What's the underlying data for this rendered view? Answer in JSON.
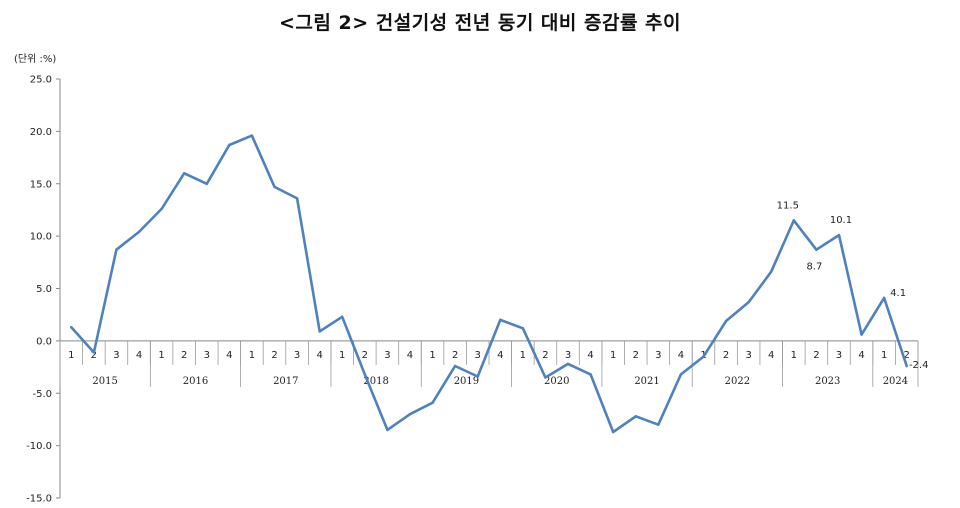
{
  "title": "<그림 2> 건설기성 전년 동기 대비 증감률 추이",
  "unit_label": "(단위 :%)",
  "chart_data": {
    "type": "line",
    "ylim": [
      -15,
      25
    ],
    "yticks": [
      "25.0",
      "20.0",
      "15.0",
      "10.0",
      "5.0",
      "0.0",
      "-5.0",
      "-10.0",
      "-15.0"
    ],
    "ytick_values": [
      25,
      20,
      15,
      10,
      5,
      0,
      -5,
      -10,
      -15
    ],
    "quarters": [
      "1",
      "2",
      "3",
      "4",
      "1",
      "2",
      "3",
      "4",
      "1",
      "2",
      "3",
      "4",
      "1",
      "2",
      "3",
      "4",
      "1",
      "2",
      "3",
      "4",
      "1",
      "2",
      "3",
      "4",
      "1",
      "2",
      "3",
      "4",
      "1",
      "2",
      "3",
      "4",
      "1",
      "2",
      "3",
      "4",
      "1",
      "2"
    ],
    "years": [
      "2015",
      "2016",
      "2017",
      "2018",
      "2019",
      "2020",
      "2021",
      "2022",
      "2023",
      "2024"
    ],
    "series_color": "#4f81bd",
    "values": [
      1.3,
      -1.1,
      8.7,
      10.4,
      12.6,
      16.0,
      15.0,
      18.7,
      19.6,
      14.7,
      13.6,
      0.9,
      2.3,
      -3.2,
      -8.5,
      -7.0,
      -5.9,
      -2.4,
      -3.4,
      2.0,
      1.2,
      -3.5,
      -2.2,
      -3.2,
      -8.7,
      -7.2,
      -8.0,
      -3.2,
      -1.5,
      1.9,
      3.7,
      6.6,
      11.5,
      8.7,
      10.1,
      0.6,
      4.1,
      -2.4
    ],
    "data_labels": [
      {
        "index": 32,
        "text": "11.5"
      },
      {
        "index": 33,
        "text": "8.7"
      },
      {
        "index": 34,
        "text": "10.1"
      },
      {
        "index": 36,
        "text": "4.1"
      },
      {
        "index": 37,
        "text": "-2.4"
      }
    ]
  }
}
